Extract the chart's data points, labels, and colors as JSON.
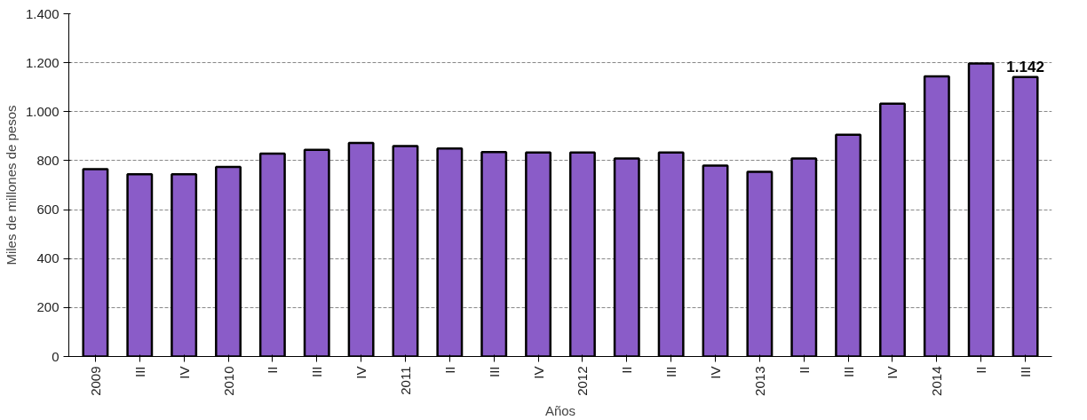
{
  "chart_data": {
    "type": "bar",
    "xlabel": "Años",
    "ylabel": "Miles de millones de pesos",
    "categories": [
      "2009",
      "III",
      "IV",
      "2010",
      "II",
      "III",
      "IV",
      "2011",
      "II",
      "III",
      "IV",
      "2012",
      "II",
      "III",
      "IV",
      "2013",
      "II",
      "III",
      "IV",
      "2014",
      "II",
      "III"
    ],
    "values": [
      765,
      744,
      744,
      774,
      829,
      844,
      872,
      860,
      850,
      835,
      833,
      833,
      809,
      833,
      780,
      754,
      809,
      906,
      1033,
      1144,
      1197,
      1142
    ],
    "value_labels": [
      null,
      null,
      null,
      null,
      null,
      null,
      null,
      null,
      null,
      null,
      null,
      null,
      null,
      null,
      null,
      null,
      null,
      null,
      null,
      null,
      null,
      "1.142"
    ],
    "color": "#8a5cc8",
    "ylim": [
      0,
      1400
    ],
    "yticks": [
      0,
      200,
      400,
      600,
      800,
      {
        "value": 1000,
        "label": "1.000"
      },
      {
        "value": 1200,
        "label": "1.200"
      },
      {
        "value": 1400,
        "label": "1.400"
      }
    ],
    "grid": "y"
  }
}
